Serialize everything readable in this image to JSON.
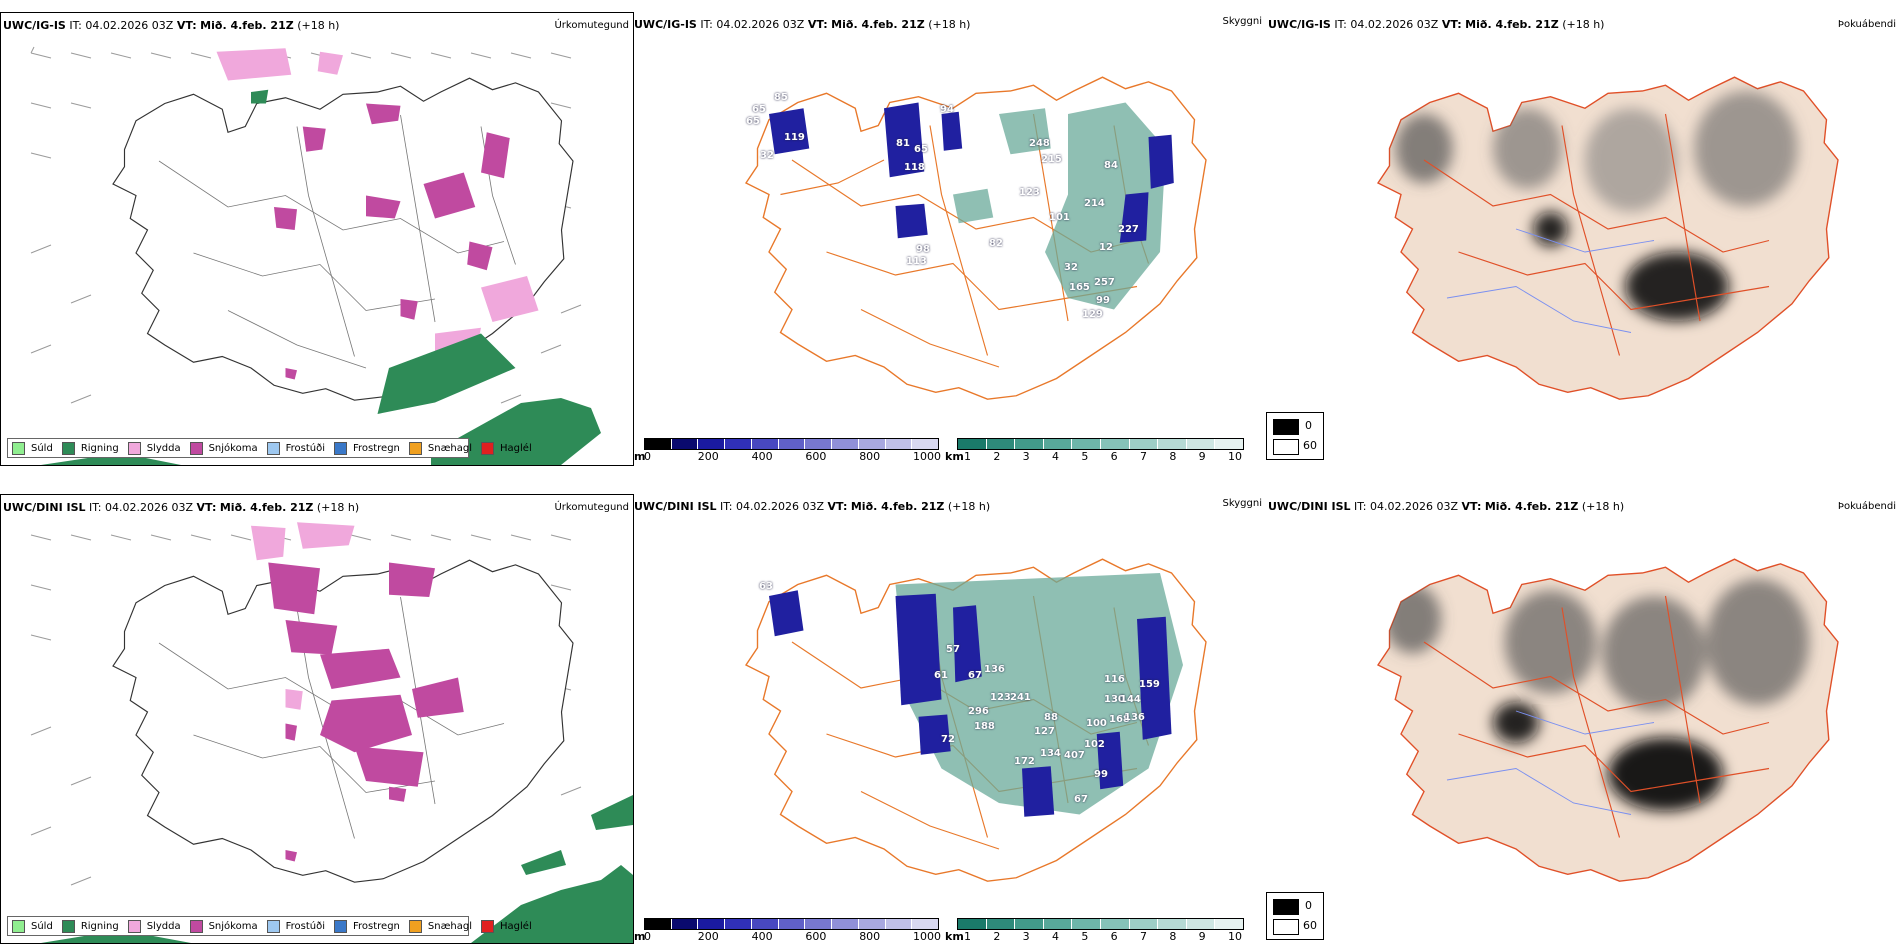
{
  "rows": [
    {
      "precip_header": {
        "model": "UWC/IG-IS",
        "it_label": "IT:",
        "it_value": "04.02.2026 03Z",
        "vt_label": "VT:",
        "vt_value": "Mið. 4.feb. 21Z",
        "lead": "(+18 h)"
      },
      "vis_header": {
        "model": "UWC/IG-IS",
        "it_label": "IT:",
        "it_value": "04.02.2026 03Z",
        "vt_label": "VT:",
        "vt_value": "Mið. 4.feb. 21Z",
        "lead": "(+18 h)"
      },
      "fog_header": {
        "model": "UWC/IG-IS",
        "it_label": "IT:",
        "it_value": "04.02.2026 03Z",
        "vt_label": "VT:",
        "vt_value": "Mið. 4.feb. 21Z",
        "lead": "(+18 h)"
      }
    },
    {
      "precip_header": {
        "model": "UWC/DINI ISL",
        "it_label": "IT:",
        "it_value": "04.02.2026 03Z",
        "vt_label": "VT:",
        "vt_value": "Mið. 4.feb. 21Z",
        "lead": "(+18 h)"
      },
      "vis_header": {
        "model": "UWC/DINI ISL",
        "it_label": "IT:",
        "it_value": "04.02.2026 03Z",
        "vt_label": "VT:",
        "vt_value": "Mið. 4.feb. 21Z",
        "lead": "(+18 h)"
      },
      "fog_header": {
        "model": "UWC/DINI ISL",
        "it_label": "IT:",
        "it_value": "04.02.2026 03Z",
        "vt_label": "VT:",
        "vt_value": "Mið. 4.feb. 21Z",
        "lead": "(+18 h)"
      }
    }
  ],
  "panel_titles": {
    "precip": "Úrkomutegund",
    "visibility": "Skyggni",
    "fog": "Þokuábendi"
  },
  "precip_legend": [
    {
      "label": "Súld",
      "color": "#90ee90"
    },
    {
      "label": "Rigning",
      "color": "#2e8b57"
    },
    {
      "label": "Slydda",
      "color": "#f0a8dc"
    },
    {
      "label": "Snjókoma",
      "color": "#c04aa0"
    },
    {
      "label": "Frostúði",
      "color": "#9ec8f0"
    },
    {
      "label": "Frostregn",
      "color": "#3a78c8"
    },
    {
      "label": "Snæhagl",
      "color": "#f0a020"
    },
    {
      "label": "Haglél",
      "color": "#e02020"
    }
  ],
  "cloud_base_bar": {
    "unit": "m",
    "ticks": [
      "0",
      "200",
      "400",
      "600",
      "800",
      "1000"
    ],
    "colors": [
      "#000000",
      "#0a0a6e",
      "#1a1aa0",
      "#3030b8",
      "#4848c0",
      "#6060c8",
      "#7878d0",
      "#9090d8",
      "#a8a8e0",
      "#c0c0e8",
      "#d8d8f0"
    ]
  },
  "visibility_bar": {
    "unit": "km",
    "ticks": [
      "1",
      "2",
      "3",
      "4",
      "5",
      "6",
      "7",
      "8",
      "9",
      "10"
    ],
    "colors": [
      "#1a7a6a",
      "#2e8a7a",
      "#429a8a",
      "#58a89a",
      "#6eb6aa",
      "#86c2b8",
      "#9eceC6",
      "#b6dad4",
      "#cee6e2",
      "#e6f2f0"
    ]
  },
  "fog_legend": [
    {
      "label": "0",
      "color": "#000000"
    },
    {
      "label": "60",
      "color": "#ffffff"
    }
  ],
  "colors": {
    "snow": "#c04aa0",
    "sleet": "#f0a8dc",
    "rain": "#2e8b57",
    "road": "#e8782a",
    "sea_field": "#6aaa9a",
    "cloud_base": "#2020a0",
    "land_tan": "#f1dfd0",
    "river": "#7a8ff0"
  },
  "vis_labels": [
    [
      "65",
      "85",
      "119",
      "32",
      "65",
      "81",
      "65",
      "118",
      "94",
      "248",
      "215",
      "84",
      "123",
      "101",
      "214",
      "227",
      "12",
      "113",
      "98",
      "82",
      "32",
      "165",
      "257",
      "99",
      "129"
    ],
    [
      "63",
      "57",
      "61",
      "67",
      "136",
      "123",
      "241",
      "296",
      "188",
      "72",
      "127",
      "88",
      "172",
      "134",
      "407",
      "102",
      "99",
      "67",
      "116",
      "130",
      "168",
      "100",
      "136",
      "144",
      "159"
    ]
  ]
}
